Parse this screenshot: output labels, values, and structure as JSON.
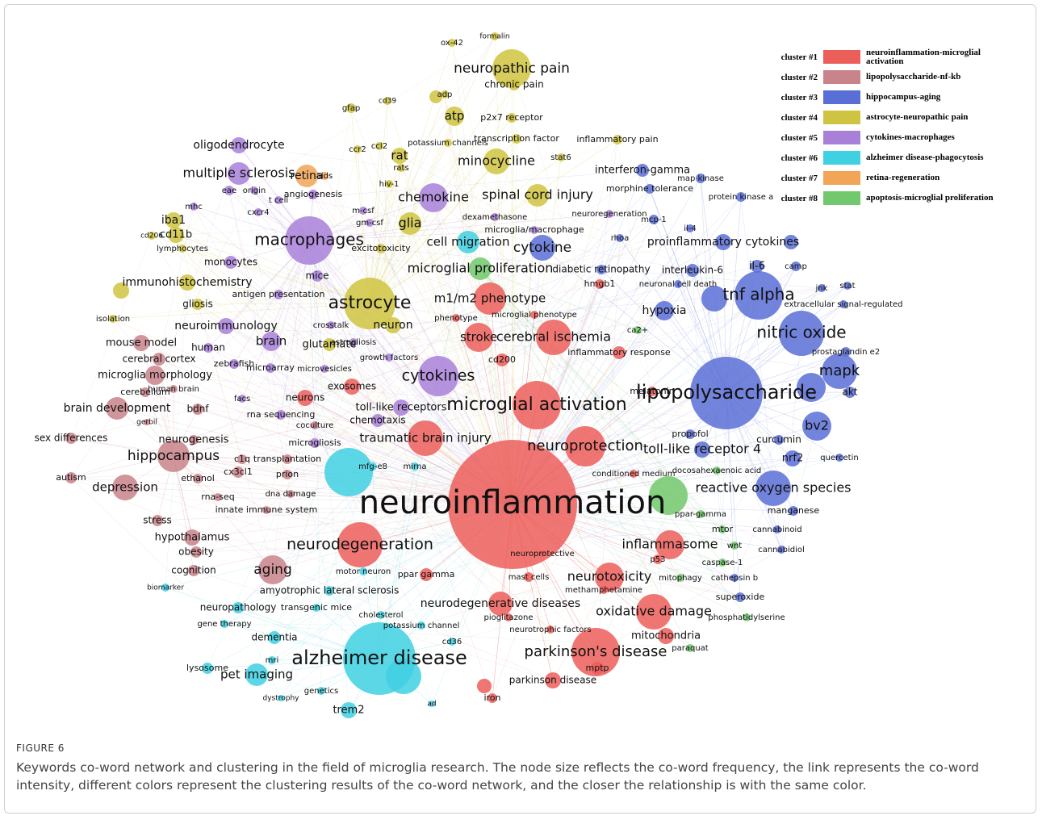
{
  "figure": {
    "label": "FIGURE 6",
    "caption": "Keywords co-word network and clustering in the field of microglia research. The node size reflects the co-word frequency, the link represents the co-word intensity, different colors represent the clustering results of the co-word network, and the closer the relationship is with the same color."
  },
  "legend": [
    {
      "cluster": "cluster #1",
      "name": "neuroinflammation-microglial activation",
      "color": "#ec5e5a",
      "keywords": [
        "neuroinflammation",
        "microglial activation",
        "neuroprotection",
        "neurodegeneration",
        "parkinson's disease",
        "oxidative damage",
        "neurotoxicity",
        "inflammasome",
        "stroke",
        "cerebral ischemia",
        "m1/m2 phenotype",
        "traumatic brain injury",
        "neurodegenerative diseases",
        "exosomes",
        "neurons",
        "parkinson disease",
        "inflammatory response",
        "cd200",
        "hmgb1",
        "mptp",
        "ppar gamma",
        "mast cells",
        "iron",
        "p53",
        "mitochondria",
        "neuroprotective",
        "conditioned medium",
        "melatonin",
        "pioglitazone",
        "neurotrophic factors",
        "methamphetamine",
        "phenotype",
        "microglial phenotype"
      ]
    },
    {
      "cluster": "cluster #2",
      "name": "lipopolysaccharide-nf-kb",
      "color": "#c9838b",
      "keywords": [
        "hippocampus",
        "depression",
        "brain development",
        "aging",
        "microglia morphology",
        "mouse model",
        "cerebral cortex",
        "hypothalamus",
        "obesity",
        "cognition",
        "stress",
        "sex differences",
        "autism",
        "bdnf",
        "cx3cl1",
        "ethanol",
        "neurogenesis",
        "cerebellum",
        "prion",
        "dna damage",
        "rna-seq",
        "innate immune system",
        "transplantation",
        "coculture",
        "c1q",
        "gerbil",
        "human brain"
      ]
    },
    {
      "cluster": "cluster #3",
      "name": "hippocampus-aging",
      "color": "#5a6fd6",
      "keywords": [
        "lipopolysaccharide",
        "tnf alpha",
        "nitric oxide",
        "mapk",
        "bv2",
        "cytokine",
        "reactive oxygen species",
        "hypoxia",
        "proinflammatory cytokines",
        "interleukin-6",
        "il-6",
        "nrf2",
        "akt",
        "interferon-gamma",
        "morphine tolerance",
        "map kinase",
        "protein kinase a",
        "mcp-1",
        "il-4",
        "jnk",
        "stat",
        "camp",
        "prostaglandin e2",
        "manganese",
        "cannabinoid",
        "cannabidiol",
        "superoxide",
        "cathepsin b",
        "quercetin",
        "curcumin",
        "propofol",
        "toll-like receptor 4",
        "diabetic retinopathy",
        "neuronal cell death",
        "rhoa",
        "extracellular signal-regulated"
      ]
    },
    {
      "cluster": "cluster #4",
      "name": "astrocyte-neuropathic pain",
      "color": "#cfc441",
      "keywords": [
        "astrocyte",
        "neuropathic pain",
        "glia",
        "minocycline",
        "spinal cord injury",
        "atp",
        "rat",
        "iba1",
        "cd11b",
        "immunohistochemistry",
        "gliosis",
        "neuron",
        "glutamate",
        "chronic pain",
        "p2x7 receptor",
        "transcription factor",
        "potassium channels",
        "inflammatory pain",
        "adp",
        "ox-42",
        "formalin",
        "cd39",
        "gfap",
        "stat6",
        "hiv-1",
        "rats",
        "ccr2",
        "ccl2",
        "excitotoxicity",
        "isolation",
        "cd206",
        "lymphocytes"
      ]
    },
    {
      "cluster": "cluster #5",
      "name": "cytokines-macrophages",
      "color": "#a880d8",
      "keywords": [
        "macrophages",
        "cytokines",
        "chemokine",
        "multiple sclerosis",
        "oligodendrocyte",
        "neuroimmunology",
        "brain",
        "monocytes",
        "toll-like receptors",
        "chemotaxis",
        "microgliosis",
        "rna sequencing",
        "mice",
        "human",
        "zebrafish",
        "microarray",
        "microvesicles",
        "antigen presentation",
        "eae",
        "origin",
        "t cell",
        "mhc",
        "cxcr4",
        "facs",
        "angiogenesis",
        "m-csf",
        "gm-csf",
        "crosstalk",
        "astrogliosis",
        "growth factors",
        "dexamethasone",
        "neuroregeneration",
        "microglia/macrophage"
      ]
    },
    {
      "cluster": "cluster #6",
      "name": "alzheimer disease-phagocytosis",
      "color": "#3fd0e2",
      "keywords": [
        "alzheimer disease",
        "cell migration",
        "pet imaging",
        "trem2",
        "dementia",
        "neuropathology",
        "amyotrophic lateral sclerosis",
        "transgenic mice",
        "cholesterol",
        "potassium channel",
        "gene therapy",
        "lysosome",
        "mri",
        "genetics",
        "dystrophy",
        "biomarker",
        "mfg-e8",
        "mirna",
        "motor neuron",
        "cd36",
        "ad"
      ]
    },
    {
      "cluster": "cluster #7",
      "name": "retina-regeneration",
      "color": "#f2a457",
      "keywords": [
        "retina",
        "aids"
      ]
    },
    {
      "cluster": "cluster #8",
      "name": "apoptosis-microglial proliferation",
      "color": "#72c86c",
      "keywords": [
        "microglial proliferation",
        "mtor",
        "wnt",
        "caspase-1",
        "mitophagy",
        "phosphatidylserine",
        "paraquat",
        "ppar-gamma",
        "docosahexaenoic acid",
        "ca2+"
      ]
    }
  ]
}
